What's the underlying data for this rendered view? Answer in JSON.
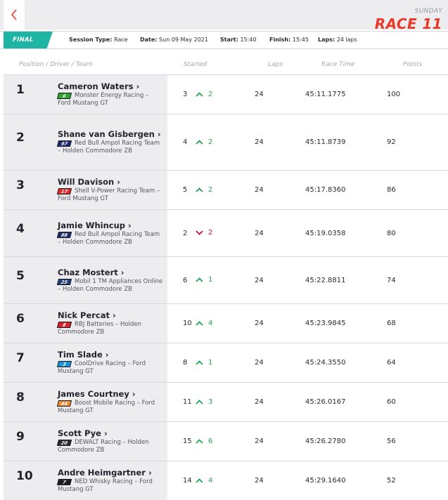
{
  "header": {
    "back_icon": "chevron-left-icon",
    "day": "SUNDAY",
    "race_label": "RACE 11",
    "accent_color": "#e8392b"
  },
  "session": {
    "status": "FINAL",
    "type_label": "Session Type:",
    "type_value": "Race",
    "date_label": "Date:",
    "date_value": "Sun 09 May 2021",
    "start_label": "Start:",
    "start_value": "15:40",
    "finish_label": "Finish:",
    "finish_value": "15:45",
    "laps_label": "Laps:",
    "laps_value": "24 laps",
    "badge_color": "#1fb5a4"
  },
  "columns": {
    "position": "Position / Driver / Team",
    "started": "Started",
    "laps": "Laps",
    "race_time": "Race Time",
    "points": "Points"
  },
  "results": [
    {
      "pos": "1",
      "driver": "Cameron Waters ›",
      "num": "6",
      "num_color": "#2fa52f",
      "team": "Monster Energy Racing – Ford Mustang GT",
      "started": "3",
      "dir": "up",
      "change": "2",
      "laps": "24",
      "time": "45:11.1775",
      "points": "100"
    },
    {
      "pos": "2",
      "driver": "Shane van Gisbergen ›",
      "num": "97",
      "num_color": "#1a2a6c",
      "team": "Red Bull Ampol Racing Team – Holden Commodore ZB",
      "started": "4",
      "dir": "up",
      "change": "2",
      "laps": "24",
      "time": "45:11.8739",
      "points": "92"
    },
    {
      "pos": "3",
      "driver": "Will Davison ›",
      "num": "17",
      "num_color": "#e02a26",
      "team": "Shell V-Power Racing Team – Ford Mustang GT",
      "started": "5",
      "dir": "up",
      "change": "2",
      "laps": "24",
      "time": "45:17.8360",
      "points": "86"
    },
    {
      "pos": "4",
      "driver": "Jamie Whincup ›",
      "num": "88",
      "num_color": "#1a2a6c",
      "team": "Red Bull Ampol Racing Team – Holden Commodore ZB",
      "started": "2",
      "dir": "down",
      "change": "2",
      "laps": "24",
      "time": "45:19.0358",
      "points": "80"
    },
    {
      "pos": "5",
      "driver": "Chaz Mostert ›",
      "num": "25",
      "num_color": "#1f3e73",
      "team": "Mobil 1 TM Appliances Online – Holden Commodore ZB",
      "started": "6",
      "dir": "up",
      "change": "1",
      "laps": "24",
      "time": "45:22.8811",
      "points": "74"
    },
    {
      "pos": "6",
      "driver": "Nick Percat ›",
      "num": "8",
      "num_color": "#d8202a",
      "team": "RBJ Batteries – Holden Commodore ZB",
      "started": "10",
      "dir": "up",
      "change": "4",
      "laps": "24",
      "time": "45:23.9845",
      "points": "68"
    },
    {
      "pos": "7",
      "driver": "Tim Slade ›",
      "num": "3",
      "num_color": "#1b8fd0",
      "team": "CoolDrive Racing – Ford Mustang GT",
      "started": "8",
      "dir": "up",
      "change": "1",
      "laps": "24",
      "time": "45:24.3550",
      "points": "64"
    },
    {
      "pos": "8",
      "driver": "James Courtney ›",
      "num": "44",
      "num_color": "#f08a2a",
      "team": "Boost Mobile Racing – Ford Mustang GT",
      "started": "11",
      "dir": "up",
      "change": "3",
      "laps": "24",
      "time": "45:26.0167",
      "points": "60"
    },
    {
      "pos": "9",
      "driver": "Scott Pye ›",
      "num": "20",
      "num_color": "#2a2a2a",
      "team": "DEWALT Racing – Holden Commodore ZB",
      "started": "15",
      "dir": "up",
      "change": "6",
      "laps": "24",
      "time": "45:26.2780",
      "points": "56"
    },
    {
      "pos": "10",
      "driver": "Andre Heimgartner ›",
      "num": "7",
      "num_color": "#1c1c1c",
      "team": "NED Whisky Racing – Ford Mustang GT",
      "started": "14",
      "dir": "up",
      "change": "4",
      "laps": "24",
      "time": "45:29.1640",
      "points": "52"
    }
  ]
}
